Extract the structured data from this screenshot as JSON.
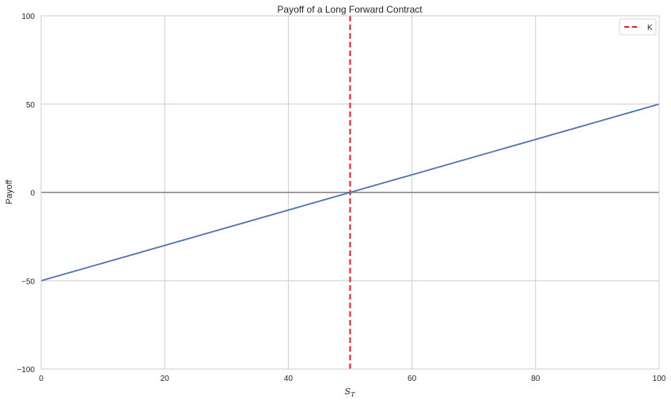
{
  "chart_data": {
    "type": "line",
    "title": "Payoff of a Long Forward Contract",
    "xlabel": "S_T",
    "ylabel": "Payoff",
    "xlim": [
      0,
      100
    ],
    "ylim": [
      -100,
      100
    ],
    "x_ticks": [
      "0",
      "20",
      "40",
      "60",
      "80",
      "100"
    ],
    "y_ticks": [
      "−100",
      "−50",
      "0",
      "50",
      "100"
    ],
    "x_tick_values": [
      0,
      20,
      40,
      60,
      80,
      100
    ],
    "y_tick_values": [
      -100,
      -50,
      0,
      50,
      100
    ],
    "grid": true,
    "series": [
      {
        "x": [
          0,
          100
        ],
        "values": [
          -50,
          50
        ],
        "color": "#4c72b0"
      }
    ],
    "reference_lines": [
      {
        "orientation": "vertical",
        "value": 50,
        "style": "dashed",
        "color": "#e41a1c",
        "name": "K"
      },
      {
        "orientation": "horizontal",
        "value": 0,
        "style": "solid",
        "color": "#7f7f7f"
      }
    ],
    "legend": {
      "placement": "top-right",
      "entries": [
        {
          "label": "K",
          "color": "#e41a1c",
          "style": "dashed"
        }
      ]
    }
  }
}
